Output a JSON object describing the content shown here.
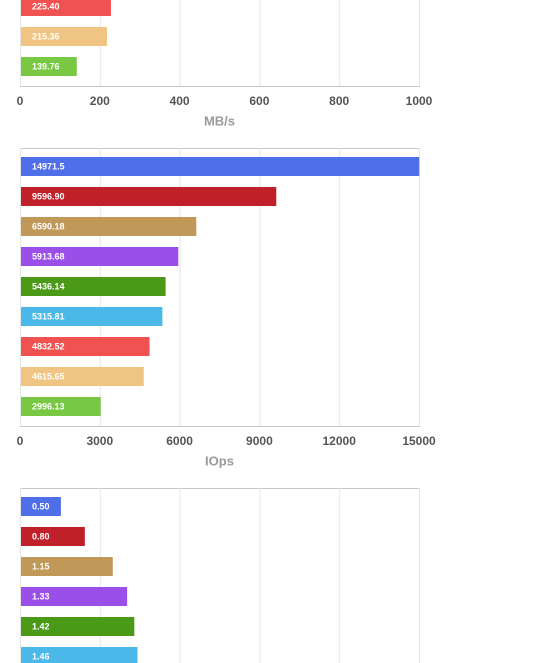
{
  "chart_data": [
    {
      "type": "bar",
      "horizontal": true,
      "xlabel": "MB/s",
      "values": [
        225.4,
        215.36,
        139.76
      ],
      "value_labels": [
        "225.40",
        "215.36",
        "139.76"
      ],
      "colors": [
        "#f05252",
        "#f0c482",
        "#78c843"
      ],
      "xlim": [
        0,
        1000
      ],
      "xticks": [
        0,
        200,
        400,
        600,
        800,
        1000
      ],
      "grid": true
    },
    {
      "type": "bar",
      "horizontal": true,
      "xlabel": "IOps",
      "values": [
        14971.5,
        9596.9,
        6590.18,
        5913.68,
        5436.14,
        5315.81,
        4832.52,
        4615.65,
        2996.13
      ],
      "value_labels": [
        "14971.5",
        "9596.90",
        "6590.18",
        "5913.68",
        "5436.14",
        "5315.81",
        "4832.52",
        "4615.65",
        "2996.13"
      ],
      "colors": [
        "#4f6fe8",
        "#c0202a",
        "#c09858",
        "#9a4fe8",
        "#4a9a18",
        "#4ab8e8",
        "#f05252",
        "#f0c482",
        "#78c843"
      ],
      "xlim": [
        0,
        15000
      ],
      "xticks": [
        0,
        3000,
        6000,
        9000,
        12000,
        15000
      ],
      "grid": true
    },
    {
      "type": "bar",
      "horizontal": true,
      "values": [
        0.5,
        0.8,
        1.15,
        1.33,
        1.42,
        1.46
      ],
      "value_labels": [
        "0.50",
        "0.80",
        "1.15",
        "1.33",
        "1.42",
        "1.46"
      ],
      "colors": [
        "#4f6fe8",
        "#c0202a",
        "#c09858",
        "#9a4fe8",
        "#4a9a18",
        "#4ab8e8"
      ],
      "xlim": [
        0,
        5
      ],
      "xticks": [
        0,
        1,
        2,
        3,
        4,
        5
      ],
      "grid": true,
      "tick_labels": false
    }
  ]
}
